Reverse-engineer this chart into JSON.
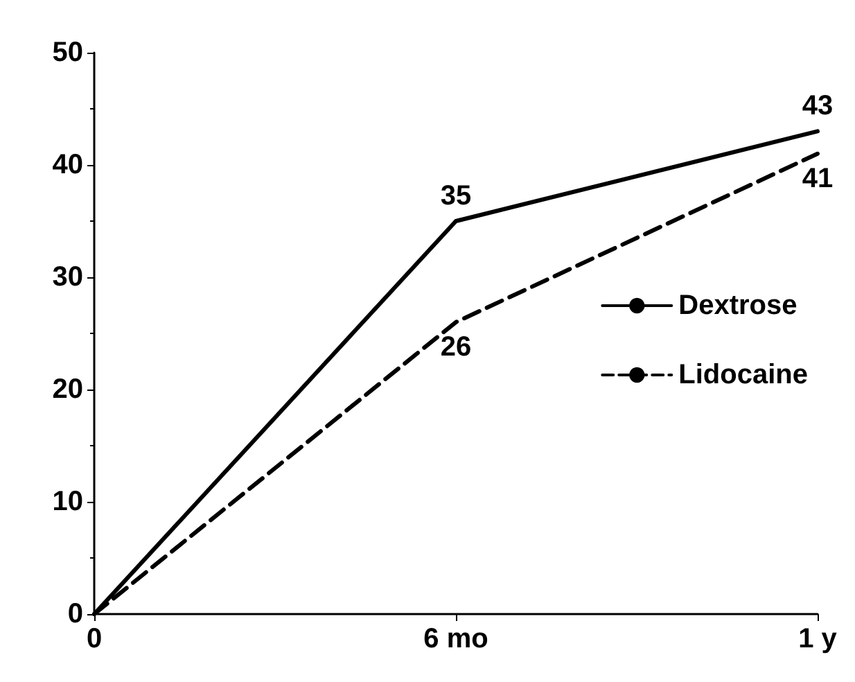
{
  "chart_data": {
    "type": "line",
    "categories": [
      "0",
      "6 mo",
      "1 y"
    ],
    "series": [
      {
        "name": "Dextrose",
        "color": "#000000",
        "values": [
          0,
          35,
          43
        ],
        "value_labels": [
          null,
          "35",
          "43"
        ],
        "line_style": "solid"
      },
      {
        "name": "Lidocaine",
        "color": "#000000",
        "values": [
          0,
          26,
          41
        ],
        "value_labels": [
          null,
          "26",
          "41"
        ],
        "line_style": "dashed"
      }
    ],
    "ylim": [
      0,
      50
    ],
    "yticks": [
      0,
      10,
      20,
      30,
      40,
      50
    ],
    "grid": false,
    "legend": "right",
    "marker": "none"
  }
}
